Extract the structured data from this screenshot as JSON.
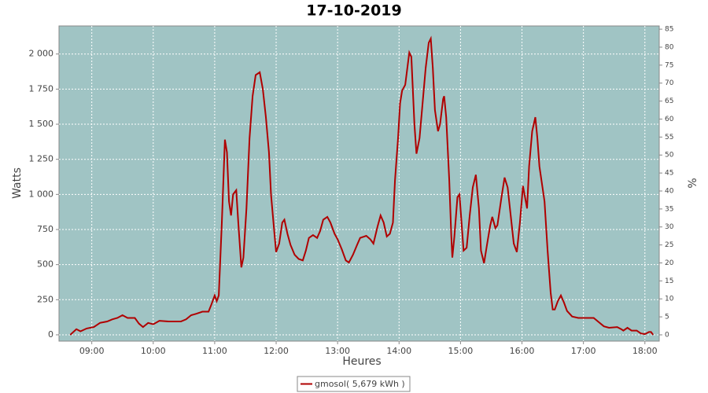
{
  "chart_data": {
    "type": "line",
    "title": "17-10-2019",
    "x_label": "Heures",
    "y_label": "Watts",
    "y2_label": "%",
    "x": [
      519,
      525,
      529,
      535,
      542,
      548,
      555,
      560,
      565,
      570,
      575,
      582,
      586,
      590,
      595,
      600,
      606,
      615,
      627,
      632,
      637,
      642,
      648,
      654,
      657,
      660,
      662,
      664,
      667,
      670,
      672,
      674,
      676,
      678,
      681,
      683,
      686,
      688,
      691,
      694,
      697,
      700,
      704,
      707,
      710,
      713,
      715,
      718,
      720,
      723,
      726,
      728,
      731,
      734,
      738,
      742,
      746,
      749,
      752,
      756,
      760,
      763,
      766,
      770,
      773,
      777,
      780,
      784,
      788,
      791,
      795,
      799,
      802,
      808,
      812,
      815,
      819,
      822,
      825,
      828,
      831,
      834,
      836,
      839,
      841,
      843,
      846,
      850,
      852,
      855,
      857,
      860,
      863,
      866,
      869,
      871,
      873,
      875,
      878,
      880,
      883,
      884,
      886,
      889,
      891,
      892,
      894,
      897,
      899,
      901,
      903,
      906,
      909,
      912,
      915,
      918,
      920,
      923,
      926,
      929,
      931,
      934,
      936,
      940,
      943,
      946,
      949,
      952,
      955,
      958,
      961,
      963,
      965,
      967,
      970,
      973,
      975,
      977,
      980,
      982,
      985,
      988,
      990,
      992,
      995,
      998,
      1001,
      1004,
      1009,
      1015,
      1022,
      1030,
      1035,
      1040,
      1045,
      1053,
      1057,
      1059,
      1063,
      1067,
      1072,
      1076,
      1080,
      1084,
      1086,
      1088
    ],
    "series": [
      {
        "name": "gmosol( 5,679 kWh )",
        "color": "#b00000",
        "values": [
          0,
          40,
          25,
          45,
          55,
          85,
          95,
          110,
          120,
          140,
          120,
          120,
          80,
          55,
          85,
          75,
          100,
          95,
          95,
          110,
          140,
          150,
          165,
          165,
          220,
          280,
          240,
          280,
          800,
          1390,
          1300,
          950,
          850,
          1000,
          1030,
          800,
          480,
          550,
          900,
          1400,
          1700,
          1850,
          1870,
          1750,
          1550,
          1300,
          1000,
          750,
          590,
          650,
          800,
          820,
          720,
          640,
          570,
          540,
          530,
          600,
          690,
          710,
          690,
          740,
          820,
          840,
          800,
          720,
          680,
          610,
          530,
          515,
          570,
          640,
          690,
          705,
          680,
          650,
          770,
          850,
          800,
          700,
          720,
          800,
          1100,
          1400,
          1650,
          1740,
          1780,
          2010,
          1980,
          1500,
          1290,
          1400,
          1650,
          1900,
          2080,
          2110,
          1900,
          1600,
          1450,
          1500,
          1680,
          1700,
          1550,
          1100,
          700,
          550,
          700,
          980,
          1000,
          800,
          600,
          620,
          850,
          1050,
          1140,
          900,
          600,
          510,
          650,
          780,
          840,
          760,
          780,
          980,
          1120,
          1050,
          850,
          650,
          590,
          800,
          1060,
          980,
          900,
          1200,
          1450,
          1550,
          1400,
          1200,
          1050,
          950,
          600,
          300,
          180,
          180,
          240,
          280,
          230,
          170,
          130,
          120,
          120,
          120,
          90,
          60,
          50,
          55,
          40,
          30,
          50,
          30,
          30,
          10,
          5,
          20,
          20,
          0
        ]
      }
    ],
    "xlim": [
      508,
      1094
    ],
    "xticks": [
      {
        "value": 540,
        "label": "09:00"
      },
      {
        "value": 600,
        "label": "10:00"
      },
      {
        "value": 660,
        "label": "11:00"
      },
      {
        "value": 720,
        "label": "12:00"
      },
      {
        "value": 780,
        "label": "13:00"
      },
      {
        "value": 840,
        "label": "14:00"
      },
      {
        "value": 900,
        "label": "15:00"
      },
      {
        "value": 960,
        "label": "16:00"
      },
      {
        "value": 1020,
        "label": "17:00"
      },
      {
        "value": 1080,
        "label": "18:00"
      }
    ],
    "ylim": [
      -45,
      2200
    ],
    "yticks": [
      0,
      250,
      500,
      750,
      {
        "value": 1000,
        "label": "1 000"
      },
      {
        "value": 1250,
        "label": "1 250"
      },
      {
        "value": 1500,
        "label": "1 500"
      },
      {
        "value": 1750,
        "label": "1 750"
      },
      {
        "value": 2000,
        "label": "2 000"
      }
    ],
    "y2lim": [
      -1.75,
      85.9
    ],
    "y2ticks": [
      0,
      5,
      10,
      15,
      20,
      25,
      30,
      35,
      40,
      45,
      50,
      55,
      60,
      65,
      70,
      75,
      80,
      85
    ],
    "grid": true,
    "legend": "bottom",
    "plot_background": "#a0c4c4"
  }
}
